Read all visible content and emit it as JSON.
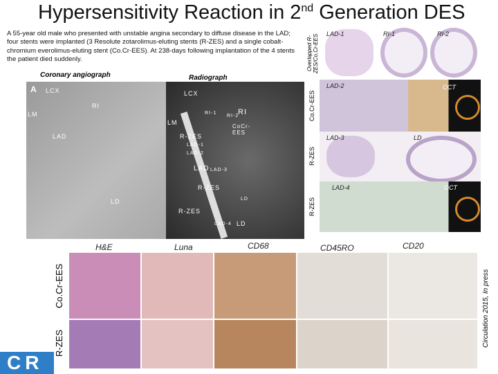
{
  "header": {
    "title_main": "Hypersensitivity Reaction in 2",
    "title_sup": "nd",
    "title_end": " Generation DES"
  },
  "case_text": "A 55-year old male who presented with unstable angina secondary to diffuse disease in the LAD; four stents were implanted (3 Resolute zotarolimus-eluting stents (R-ZES) and a single cobalt-chromium everolimus-eluting stent (Co.Cr-EES). At 238-days following implantation of the 4 stents the patient died suddenly.",
  "angiograph": {
    "caption": "Coronary angiograph",
    "labels": [
      "A",
      "LCX",
      "RI",
      "LM",
      "LAD",
      "LD"
    ]
  },
  "radiograph": {
    "caption": "Radiograph",
    "labels": [
      "LCX",
      "LM",
      "RI-1",
      "RI-2",
      "RI",
      "CoCr-EES",
      "R-ZES",
      "LAD-1",
      "LAD-2",
      "LAD",
      "LAD-3",
      "R-ZES",
      "LD",
      "R-ZES",
      "LAD-4",
      "LD"
    ]
  },
  "histology": {
    "row_labels": [
      "Overlapped R-ZES/Co.Cr-EES",
      "Co.Cr-EES",
      "R-ZES",
      "R-ZES"
    ],
    "labels": [
      "LAD-1",
      "RI-1",
      "RI-2",
      "LAD-2",
      "OCT",
      "LAD-3",
      "LD",
      "LAD-4",
      "OCT"
    ]
  },
  "stains": {
    "columns": [
      "H&E",
      "Luna",
      "CD68",
      "CD45RO",
      "CD20"
    ],
    "rows": [
      "Co.Cr-EES",
      "R-ZES"
    ]
  },
  "citation": "Circulation 2015, In press",
  "logo": "CR"
}
